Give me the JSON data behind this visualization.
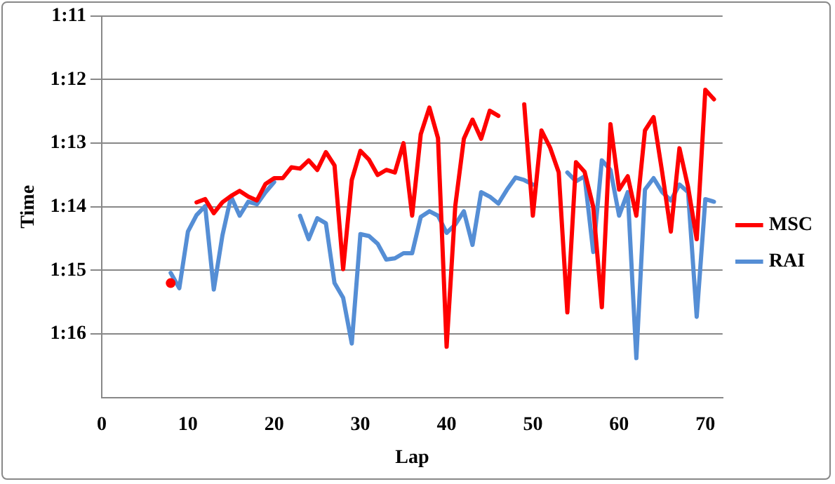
{
  "chart_data": {
    "type": "line",
    "xlabel": "Lap",
    "ylabel": "Time",
    "x": [
      8,
      9,
      10,
      11,
      12,
      13,
      14,
      15,
      16,
      17,
      18,
      19,
      20,
      21,
      22,
      23,
      24,
      25,
      26,
      27,
      28,
      29,
      30,
      31,
      32,
      33,
      34,
      35,
      36,
      37,
      38,
      39,
      40,
      41,
      42,
      43,
      44,
      45,
      46,
      47,
      48,
      49,
      50,
      51,
      52,
      53,
      54,
      55,
      56,
      57,
      58,
      59,
      60,
      61,
      62,
      63,
      64,
      65,
      66,
      67,
      68,
      69,
      70,
      71
    ],
    "series": [
      {
        "name": "MSC",
        "color": "#ff0000",
        "values": [
          75.2,
          null,
          null,
          73.93,
          73.88,
          74.1,
          73.93,
          73.83,
          73.75,
          73.84,
          73.9,
          73.64,
          73.55,
          73.55,
          73.38,
          73.4,
          73.27,
          73.42,
          73.14,
          73.35,
          74.98,
          73.58,
          73.12,
          73.26,
          73.5,
          73.42,
          73.46,
          73.0,
          74.14,
          72.86,
          72.44,
          72.92,
          76.2,
          73.99,
          72.93,
          72.63,
          72.93,
          72.49,
          72.57,
          null,
          null,
          72.39,
          74.14,
          72.8,
          73.07,
          73.46,
          75.66,
          73.3,
          73.45,
          74.0,
          75.58,
          72.7,
          73.73,
          73.52,
          74.14,
          72.8,
          72.59,
          73.46,
          74.39,
          73.08,
          73.69,
          74.51,
          72.16,
          72.31
        ]
      },
      {
        "name": "RAI",
        "color": "#558ed5",
        "values": [
          75.04,
          75.28,
          74.39,
          74.13,
          73.99,
          75.3,
          74.45,
          73.84,
          74.14,
          73.92,
          73.96,
          73.77,
          73.61,
          null,
          null,
          74.14,
          74.51,
          74.18,
          74.26,
          75.2,
          75.43,
          76.15,
          74.43,
          74.46,
          74.58,
          74.83,
          74.81,
          74.73,
          74.73,
          74.16,
          74.07,
          74.14,
          74.41,
          74.28,
          74.07,
          74.6,
          73.77,
          73.84,
          73.95,
          73.73,
          73.54,
          73.58,
          73.65,
          null,
          null,
          null,
          73.46,
          73.6,
          73.52,
          74.71,
          73.27,
          73.42,
          74.14,
          73.77,
          76.38,
          73.73,
          73.55,
          73.77,
          73.9,
          73.65,
          73.77,
          75.73,
          73.88,
          73.92
        ]
      }
    ],
    "xlim": [
      0,
      72
    ],
    "xticks": [
      0,
      10,
      20,
      30,
      40,
      50,
      60,
      70
    ],
    "ylim": [
      77,
      71
    ],
    "yticks": [
      {
        "value": 71,
        "label": "1:11"
      },
      {
        "value": 72,
        "label": "1:12"
      },
      {
        "value": 73,
        "label": "1:13"
      },
      {
        "value": 74,
        "label": "1:14"
      },
      {
        "value": 75,
        "label": "1:15"
      },
      {
        "value": 76,
        "label": "1:16"
      }
    ],
    "grid": "y",
    "legend": "right",
    "marker": "none",
    "line_style": "solid"
  }
}
